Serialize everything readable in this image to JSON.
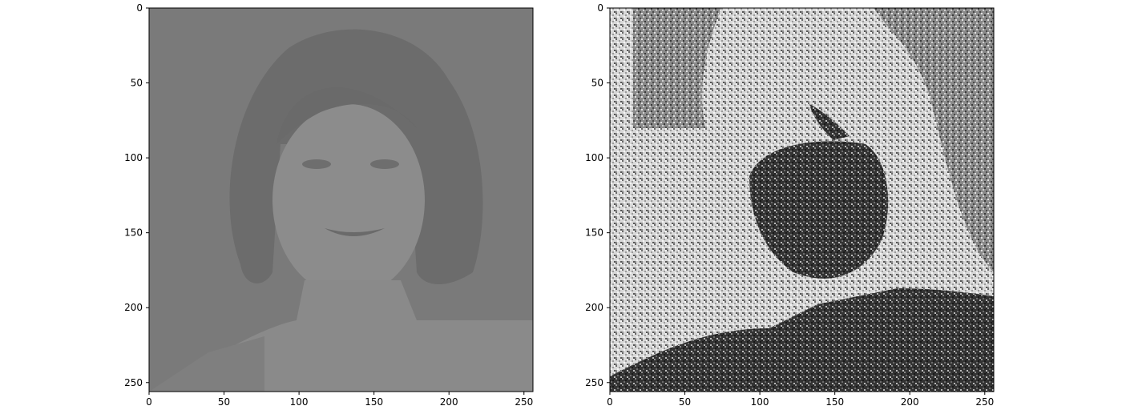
{
  "figure": {
    "panels": [
      {
        "id": "left",
        "image_description_name": "low-contrast-portrait",
        "x_ticks": [
          "0",
          "50",
          "100",
          "150",
          "200",
          "250"
        ],
        "y_ticks": [
          "0",
          "50",
          "100",
          "150",
          "200",
          "250"
        ],
        "x_tick_values": [
          0,
          50,
          100,
          150,
          200,
          250
        ],
        "y_tick_values": [
          0,
          50,
          100,
          150,
          200,
          250
        ],
        "axis_range": [
          0,
          256
        ]
      },
      {
        "id": "right",
        "image_description_name": "noisy-high-contrast-portrait",
        "x_ticks": [
          "0",
          "50",
          "100",
          "150",
          "200",
          "250"
        ],
        "y_ticks": [
          "0",
          "50",
          "100",
          "150",
          "200",
          "250"
        ],
        "x_tick_values": [
          0,
          50,
          100,
          150,
          200,
          250
        ],
        "y_tick_values": [
          0,
          50,
          100,
          150,
          200,
          250
        ],
        "axis_range": [
          0,
          256
        ]
      }
    ],
    "colors": {
      "left_background": "#7a7a7a",
      "left_hair": "#6b6b6b",
      "left_face": "#8a8a8a",
      "right_light": "#dcdcdc",
      "right_dark": "#2e2e2e"
    }
  }
}
